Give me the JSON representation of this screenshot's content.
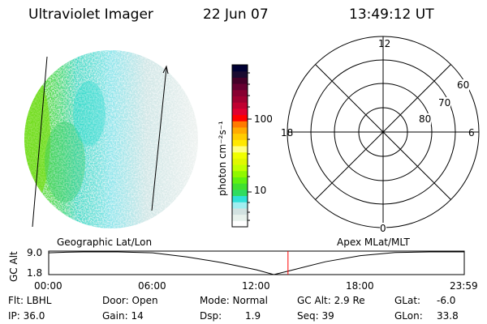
{
  "header": {
    "instrument": "Ultraviolet Imager",
    "date": "22 Jun 07",
    "time": "13:49:12 UT"
  },
  "colorbar": {
    "label": "photon cm⁻²s⁻¹",
    "ticks": [
      "100",
      "10"
    ],
    "colors": [
      "#ffffff",
      "#e8f2ec",
      "#d2e2e0",
      "#a0eef0",
      "#30e0d8",
      "#30dc60",
      "#40e030",
      "#60f010",
      "#90f800",
      "#c0ff00",
      "#e0f800",
      "#f0ff00",
      "#ffff80",
      "#ffe800",
      "#ffcc00",
      "#ffaa00",
      "#ff7a00",
      "#ff0000",
      "#e00030",
      "#c00030",
      "#a00030",
      "#880030",
      "#660030",
      "#440028",
      "#1a0a30",
      "#000033"
    ]
  },
  "polar": {
    "top": "12",
    "left": "18",
    "right": "6",
    "bottom": "0",
    "rings": [
      "60",
      "70",
      "80"
    ]
  },
  "chart_data": {
    "type": "line",
    "title": "",
    "left_label": "Geographic Lat/Lon",
    "right_label": "Apex MLat/MLT",
    "ylabel": "GC Alt",
    "yticks": [
      "9.0",
      "1.8"
    ],
    "ylim": [
      1.8,
      9.0
    ],
    "xticks": [
      "00:00",
      "06:00",
      "12:00",
      "18:00",
      "23:59"
    ],
    "xlim": [
      0,
      24
    ],
    "x": [
      0,
      1,
      2,
      4,
      6,
      8,
      10,
      12,
      13,
      13.82,
      16,
      18,
      20,
      22,
      24
    ],
    "y": [
      8.7,
      8.9,
      9.0,
      9.0,
      8.7,
      7.4,
      5.6,
      3.3,
      1.8,
      2.9,
      5.9,
      7.8,
      8.8,
      9.0,
      9.0
    ],
    "current_time_hours": 13.82,
    "current_marker_color": "#ff0000"
  },
  "status": {
    "flt": "Flt: LBHL",
    "ip": "IP: 36.0",
    "door": "Door: Open",
    "gain": "Gain: 14",
    "mode": "Mode: Normal",
    "dsp_label": "Dsp:",
    "dsp_value": "1.9",
    "gcalt": "GC Alt: 2.9 Re",
    "seq": "Seq: 39",
    "glat_label": "GLat:",
    "glat_value": "-6.0",
    "glon_label": "GLon:",
    "glon_value": "33.8"
  }
}
